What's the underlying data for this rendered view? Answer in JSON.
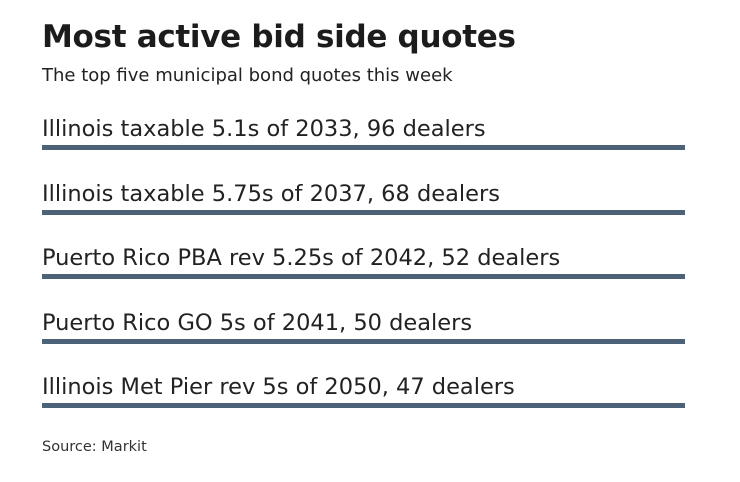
{
  "header": {
    "title": "Most active bid side quotes",
    "subtitle": "The top five municipal bond quotes this week"
  },
  "colors": {
    "rule": "#4b6278",
    "text": "#222222"
  },
  "chart_data": {
    "type": "table",
    "title": "Most active bid side quotes",
    "subtitle": "The top five municipal bond quotes this week",
    "rows": [
      {
        "label": "Illinois taxable 5.1s of 2033, 96 dealers",
        "bond": "Illinois taxable 5.1s of 2033",
        "dealers": 96
      },
      {
        "label": "Illinois taxable 5.75s of 2037, 68 dealers",
        "bond": "Illinois taxable 5.75s of 2037",
        "dealers": 68
      },
      {
        "label": "Puerto Rico PBA rev 5.25s of 2042, 52 dealers",
        "bond": "Puerto Rico PBA rev 5.25s of 2042",
        "dealers": 52
      },
      {
        "label": "Puerto Rico GO 5s of 2041, 50 dealers",
        "bond": "Puerto Rico GO 5s of 2041",
        "dealers": 50
      },
      {
        "label": "Illinois Met Pier rev 5s of 2050, 47 dealers",
        "bond": "Illinois Met Pier rev 5s of 2050",
        "dealers": 47
      }
    ],
    "source": "Source: Markit"
  }
}
